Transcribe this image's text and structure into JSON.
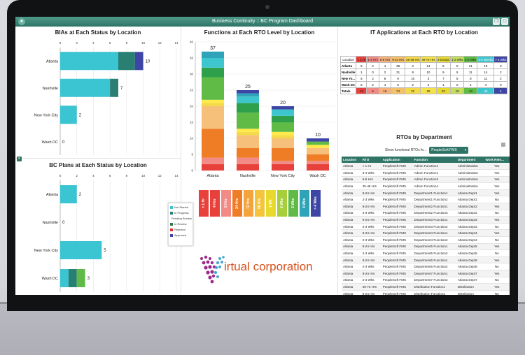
{
  "window": {
    "title": "Business Continuity :: BC Program Dashboard"
  },
  "colors": {
    "titlebar": "#2f7466",
    "not_started": "#3bc4d2",
    "in_progress": "#2a7f73",
    "pending_review": "#5fbb46",
    "in_review": "#2e7d4f",
    "rejected": "#d8312f",
    "approved": "#3d46a5"
  },
  "bia": {
    "title": "BIAs at Each Status by Location",
    "x_ticks": [
      "0",
      "2",
      "4",
      "6",
      "8",
      "10",
      "12",
      "14"
    ],
    "chart_data": {
      "type": "bar",
      "orientation": "horizontal",
      "stacked": true,
      "categories": [
        "Atlanta",
        "Nashville",
        "New York City",
        "Wash DC"
      ],
      "xlim": [
        0,
        14
      ],
      "series": [
        {
          "name": "Not Started",
          "values": [
            7,
            6,
            2,
            0
          ]
        },
        {
          "name": "In Progress",
          "values": [
            2,
            1,
            0,
            0
          ]
        },
        {
          "name": "Approved",
          "values": [
            1,
            0,
            0,
            0
          ]
        }
      ],
      "totals": [
        "10",
        "7",
        "2",
        "0"
      ]
    }
  },
  "plans": {
    "title": "BC Plans at Each Status by Location",
    "x_ticks": [
      "0",
      "2",
      "4",
      "6",
      "8",
      "10",
      "12",
      "14"
    ],
    "legend": [
      "Not Started",
      "In Progress",
      "Pending Review",
      "In Review",
      "Rejected",
      "Approved"
    ],
    "chart_data": {
      "type": "bar",
      "orientation": "horizontal",
      "stacked": true,
      "categories": [
        "Atlanta",
        "Nashville",
        "New York City",
        "Wash DC"
      ],
      "xlim": [
        0,
        14
      ],
      "series": [
        {
          "name": "Not Started",
          "values": [
            2,
            0,
            5,
            1
          ]
        },
        {
          "name": "In Progress",
          "values": [
            0,
            0,
            0,
            1
          ]
        },
        {
          "name": "Pending Review",
          "values": [
            0,
            0,
            0,
            1
          ]
        }
      ],
      "totals": [
        "2",
        "0",
        "5",
        "3"
      ]
    }
  },
  "functions": {
    "title": "Functions at Each RTO Level by Location",
    "y_ticks": [
      "0",
      "5",
      "10",
      "15",
      "20",
      "25",
      "30",
      "35",
      "40"
    ],
    "chart_data": {
      "type": "bar",
      "stacked": true,
      "categories": [
        "Atlanta",
        "Nashville",
        "New York City",
        "Wash DC"
      ],
      "ylim": [
        0,
        40
      ],
      "segment_colors": [
        "#e8413c",
        "#f28b86",
        "#ef7d25",
        "#f6c07a",
        "#f4d94a",
        "#ffea4a",
        "#5fbb46",
        "#2e9f4a",
        "#3ec6cf",
        "#2fa4b8",
        "#3d46a5"
      ],
      "series": [
        {
          "name": "< 1 Hr",
          "values": [
            2,
            2,
            2,
            2
          ]
        },
        {
          "name": "4 Hrs",
          "values": [
            2,
            2,
            1,
            1
          ]
        },
        {
          "name": "8 Hrs",
          "values": [
            9,
            3,
            4,
            2
          ]
        },
        {
          "name": "24 Hrs",
          "values": [
            7,
            4,
            3,
            2
          ]
        },
        {
          "name": "72 Hrs",
          "values": [
            1,
            1,
            1,
            0
          ]
        },
        {
          "name": "96 Hrs",
          "values": [
            1,
            1,
            1,
            1
          ]
        },
        {
          "name": "1 Wk",
          "values": [
            7,
            5,
            3,
            1
          ]
        },
        {
          "name": "2 Wks",
          "values": [
            3,
            3,
            2,
            0
          ]
        },
        {
          "name": "3 Wks",
          "values": [
            3,
            2,
            2,
            0
          ]
        },
        {
          "name": "4 Wks",
          "values": [
            2,
            1,
            0,
            0
          ]
        },
        {
          "name": "> 4 Wks",
          "values": [
            0,
            1,
            1,
            1
          ]
        }
      ],
      "totals": [
        "37",
        "25",
        "20",
        "10"
      ]
    }
  },
  "rto_levels": [
    {
      "label": "< 1 Hr",
      "color": "#e8413c"
    },
    {
      "label": "4 Hrs",
      "color": "#e8413c"
    },
    {
      "label": "8 Hrs",
      "color": "#f28b86"
    },
    {
      "label": "24 Hrs",
      "color": "#ef7d25"
    },
    {
      "label": "72 Hrs",
      "color": "#f4a43a"
    },
    {
      "label": "96 Hrs",
      "color": "#f4c43a"
    },
    {
      "label": "1 Wk",
      "color": "#e8d92e"
    },
    {
      "label": "2 Wks",
      "color": "#a6cf3a"
    },
    {
      "label": "3 Wks",
      "color": "#5fbb46"
    },
    {
      "label": "4 Wks",
      "color": "#2fa4b8"
    },
    {
      "label": "> 4 Wks",
      "color": "#3d46a5"
    }
  ],
  "logo": {
    "text": "irtual corporation"
  },
  "it_apps": {
    "title": "IT Applications at Each RTO by Location",
    "headers": [
      "Location",
      "< 1 Hr",
      "1-4 Hrs",
      "5-8 Hrs",
      "9-24 Hrs",
      "25-48 Hrs",
      "49-72 Hrs",
      "4-6 Days",
      "1-2 Wks",
      "2-3 Wks",
      "3-4 Weeks",
      "> 4 Wks"
    ],
    "header_colors": [
      "#ffffff",
      "#e8413c",
      "#f28b86",
      "#f6b27a",
      "#f4c06a",
      "#f4d94a",
      "#f4e24a",
      "#e8d92e",
      "#c4dc60",
      "#5fbb46",
      "#3ec6cf",
      "#3d46a5"
    ],
    "rows": [
      {
        "loc": "Atlanta",
        "vals": [
          "5",
          "2",
          "4",
          "38",
          "2",
          "14",
          "6",
          "0",
          "21",
          "19",
          "0"
        ]
      },
      {
        "loc": "Nashville",
        "vals": [
          "1",
          "0",
          "2",
          "21",
          "8",
          "10",
          "9",
          "5",
          "11",
          "14",
          "2"
        ]
      },
      {
        "loc": "New Yo...",
        "vals": [
          "5",
          "2",
          "8",
          "9",
          "10",
          "3",
          "7",
          "5",
          "8",
          "11",
          "2"
        ]
      },
      {
        "loc": "Wash DC",
        "vals": [
          "5",
          "2",
          "4",
          "6",
          "2",
          "2",
          "1",
          "0",
          "4",
          "4",
          "0"
        ]
      }
    ],
    "totals": {
      "loc": "Totals",
      "vals": [
        "16",
        "6",
        "18",
        "74",
        "22",
        "29",
        "23",
        "10",
        "44",
        "48",
        "4"
      ]
    }
  },
  "rto_dept": {
    "title": "RTOs by Department",
    "filter_label": "Show functional RTOs fo...",
    "filter_value": "PeopleSoft FMS",
    "columns": [
      "Location",
      "RTO",
      "Application",
      "Function",
      "Department",
      "Work Rem..."
    ],
    "rows": [
      [
        "Atlanta",
        "< 1 Hr",
        "PeopleSoft FMS",
        "Admin Function1",
        "Administration",
        "Yes"
      ],
      [
        "Atlanta",
        "3-4 Wks",
        "PeopleSoft FMS",
        "Admin Function1",
        "Administration",
        "Yes"
      ],
      [
        "Atlanta",
        "5-8 Hrs",
        "PeopleSoft FMS",
        "Admin Function3",
        "Administration",
        "Yes"
      ],
      [
        "Atlanta",
        "25-48 Hrs",
        "PeopleSoft FMS",
        "Admin Function4",
        "Administration",
        "Yes"
      ],
      [
        "Atlanta",
        "9-24 Hrs",
        "PeopleSoft FMS",
        "Department1 Function1",
        "Atlanta Dept1",
        "Yes"
      ],
      [
        "Atlanta",
        "2-3 Wks",
        "PeopleSoft FMS",
        "Department1 Function2",
        "Atlanta Dept1",
        "No"
      ],
      [
        "Atlanta",
        "9-24 Hrs",
        "PeopleSoft FMS",
        "Department2 Function1",
        "Atlanta Dept2",
        "Yes"
      ],
      [
        "Atlanta",
        "2-3 Wks",
        "PeopleSoft FMS",
        "Department2 Function3",
        "Atlanta Dept2",
        "No"
      ],
      [
        "Atlanta",
        "9-24 Hrs",
        "PeopleSoft FMS",
        "Department3 Function1",
        "Atlanta Dept3",
        "Yes"
      ],
      [
        "Atlanta",
        "2-3 Wks",
        "PeopleSoft FMS",
        "Department3 Function2",
        "Atlanta Dept3",
        "No"
      ],
      [
        "Atlanta",
        "9-24 Hrs",
        "PeopleSoft FMS",
        "Department4 Function1",
        "Atlanta Dept4",
        "Yes"
      ],
      [
        "Atlanta",
        "2-3 Wks",
        "PeopleSoft FMS",
        "Department4 Function2",
        "Atlanta Dept4",
        "No"
      ],
      [
        "Atlanta",
        "9-24 Hrs",
        "PeopleSoft FMS",
        "Department5 Function1",
        "Atlanta Dept5",
        "Yes"
      ],
      [
        "Atlanta",
        "2-3 Wks",
        "PeopleSoft FMS",
        "Department5 Function2",
        "Atlanta Dept5",
        "No"
      ],
      [
        "Atlanta",
        "9-24 Hrs",
        "PeopleSoft FMS",
        "Department6 Function1",
        "Atlanta Dept6",
        "Yes"
      ],
      [
        "Atlanta",
        "2-3 Wks",
        "PeopleSoft FMS",
        "Department6 Function2",
        "Atlanta Dept6",
        "No"
      ],
      [
        "Atlanta",
        "9-24 Hrs",
        "PeopleSoft FMS",
        "Department7 Function1",
        "Atlanta Dept7",
        "Yes"
      ],
      [
        "Atlanta",
        "2-3 Wks",
        "PeopleSoft FMS",
        "Department7 Function2",
        "Atlanta Dept7",
        "No"
      ],
      [
        "Atlanta",
        "49-72 Hrs",
        "PeopleSoft FMS",
        "Distribution Function1",
        "Distribution",
        "Yes"
      ],
      [
        "Atlanta",
        "9-24 Hrs",
        "PeopleSoft FMS",
        "Distribution Function2",
        "Distribution",
        "No"
      ],
      [
        "Atlanta",
        "9-24 Hrs",
        "PeopleSoft FMS",
        "Distribution Function3",
        "Distribution",
        "No"
      ]
    ]
  }
}
